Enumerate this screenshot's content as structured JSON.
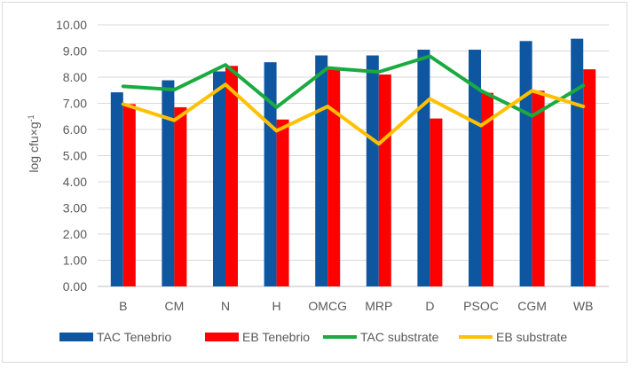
{
  "chart_data": {
    "type": "bar",
    "categories": [
      "B",
      "CM",
      "N",
      "H",
      "OMCG",
      "MRP",
      "D",
      "PSOC",
      "CGM",
      "WB"
    ],
    "ylabel_main": "log cfu×g",
    "ylabel_sup": "-1",
    "ylim": [
      0,
      10
    ],
    "yticks": [
      "0.00",
      "1.00",
      "2.00",
      "3.00",
      "4.00",
      "5.00",
      "6.00",
      "7.00",
      "8.00",
      "9.00",
      "10.00"
    ],
    "grid": true,
    "legend_position": "bottom",
    "series": [
      {
        "name": "TAC Tenebrio",
        "kind": "bar",
        "color": "#0f56a0",
        "values": [
          7.42,
          7.88,
          8.22,
          8.57,
          8.83,
          8.83,
          9.05,
          9.05,
          9.38,
          9.47
        ]
      },
      {
        "name": "EB Tenebrio",
        "kind": "bar",
        "color": "#ff0000",
        "values": [
          6.97,
          6.85,
          8.43,
          6.38,
          8.38,
          8.1,
          6.42,
          7.4,
          7.48,
          8.3
        ]
      },
      {
        "name": "TAC substrate",
        "kind": "line",
        "color": "#1aaa3f",
        "values": [
          7.65,
          7.52,
          8.47,
          6.85,
          8.35,
          8.2,
          8.8,
          7.48,
          6.52,
          7.68
        ]
      },
      {
        "name": "EB substrate",
        "kind": "line",
        "color": "#ffc000",
        "values": [
          6.97,
          6.35,
          7.72,
          5.95,
          6.88,
          5.45,
          7.17,
          6.15,
          7.48,
          6.88
        ]
      }
    ]
  }
}
